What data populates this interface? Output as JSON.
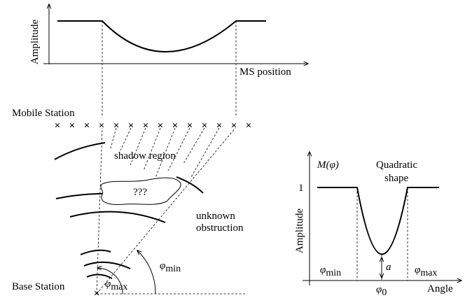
{
  "top_plot": {
    "ylabel": "Amplitude",
    "xlabel": "MS position"
  },
  "scene": {
    "mobile_station_label": "Mobile Station",
    "shadow_region_label": "shadow region",
    "obstruction_text": "???",
    "unknown_obstruction_line1": "unknown",
    "unknown_obstruction_line2": "obstruction",
    "base_station_label": "Base Station",
    "phi_min": "φ",
    "phi_min_sub": "min",
    "phi_max": "φ",
    "phi_max_sub": "max",
    "ms_marker_count": 14
  },
  "right_plot": {
    "func_label": "M(φ)",
    "title_line1": "Quadratic",
    "title_line2": "shape",
    "tick_one": "1",
    "ylabel": "Amplitude",
    "xlabel": "Angle",
    "phi_min": "φ",
    "phi_min_sub": "min",
    "phi_max": "φ",
    "phi_max_sub": "max",
    "phi_zero": "φ",
    "phi_zero_sub": "0",
    "depth_label": "a"
  }
}
